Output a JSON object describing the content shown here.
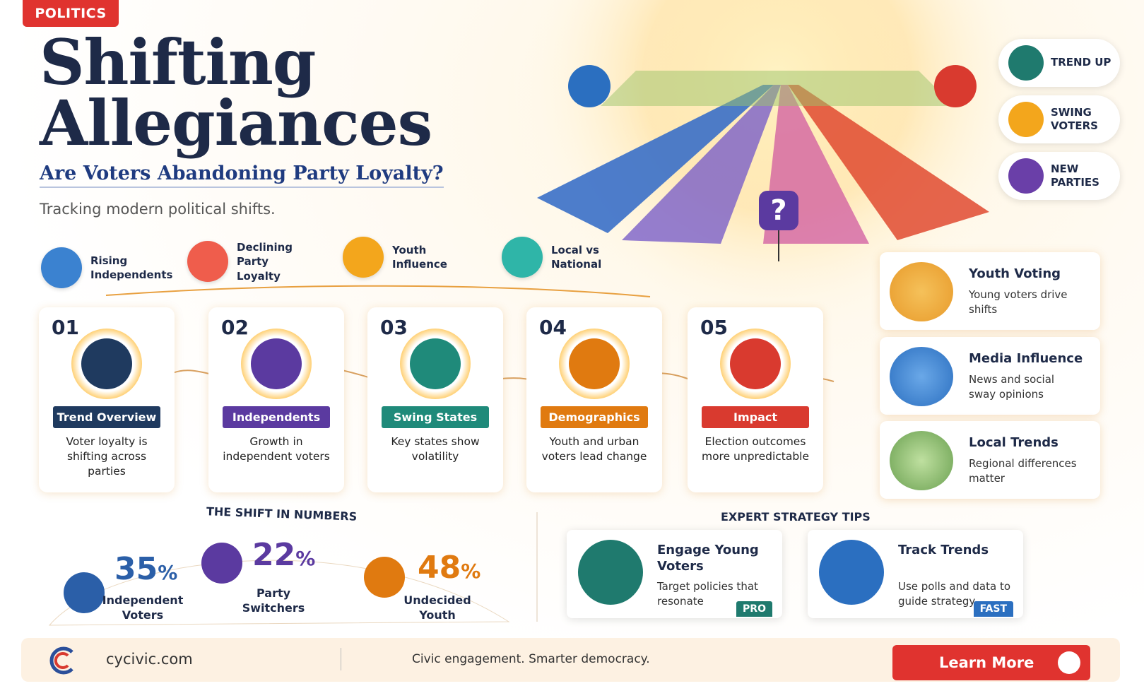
{
  "header": {
    "tag": "POLITICS",
    "title_line1": "Shifting",
    "title_line2": "Allegiances",
    "subtitle": "Are Voters Abandoning Party Loyalty?",
    "tagline": "Tracking modern political shifts."
  },
  "hero": {
    "marker": "?"
  },
  "badges": [
    {
      "label": "TREND UP",
      "color": "#1f7a6e"
    },
    {
      "label": "SWING VOTERS",
      "color": "#f3a61c"
    },
    {
      "label": "NEW PARTIES",
      "color": "#6a3fa8"
    }
  ],
  "topics": [
    {
      "label": "Rising Independents",
      "color": "#3b82d0"
    },
    {
      "label": "Declining Party Loyalty",
      "color": "#ef5d4c"
    },
    {
      "label": "Youth Influence",
      "color": "#f3a61c"
    },
    {
      "label": "Local vs National",
      "color": "#2fb5a8"
    }
  ],
  "steps": [
    {
      "number": "01",
      "title": "Trend Overview",
      "text": "Voter loyalty is shifting across parties",
      "color": "#1f3a5f"
    },
    {
      "number": "02",
      "title": "Independents",
      "text": "Growth in independent voters",
      "color": "#5b3aa0"
    },
    {
      "number": "03",
      "title": "Swing States",
      "text": "Key states show volatility",
      "color": "#1f8a7a"
    },
    {
      "number": "04",
      "title": "Demographics",
      "text": "Youth and urban voters lead change",
      "color": "#e07a10"
    },
    {
      "number": "05",
      "title": "Impact",
      "text": "Election outcomes more unpredictable",
      "color": "#d93a2f"
    }
  ],
  "side_cards": [
    {
      "title": "Youth Voting",
      "text": "Young voters drive shifts"
    },
    {
      "title": "Media Influence",
      "text": "News and social sway opinions"
    },
    {
      "title": "Local Trends",
      "text": "Regional differences matter"
    }
  ],
  "stats": {
    "title": "THE SHIFT IN NUMBERS",
    "items": [
      {
        "value": 35,
        "unit": "%",
        "label": "Independent Voters",
        "color": "#2b5fa8"
      },
      {
        "value": 22,
        "unit": "%",
        "label": "Party Switchers",
        "color": "#5b3aa0"
      },
      {
        "value": 48,
        "unit": "%",
        "label": "Undecided Youth",
        "color": "#e07a10"
      }
    ]
  },
  "tips": {
    "title": "EXPERT STRATEGY TIPS",
    "items": [
      {
        "title": "Engage Young Voters",
        "text": "Target policies that resonate",
        "tag": "PRO",
        "color": "#1f7a6e"
      },
      {
        "title": "Track Trends",
        "text": "Use polls and data to guide strategy",
        "tag": "FAST",
        "color": "#2b6fc0"
      }
    ]
  },
  "footer": {
    "site": "cycivic.com",
    "tagline": "Civic engagement. Smarter democracy.",
    "button": "Learn More"
  }
}
